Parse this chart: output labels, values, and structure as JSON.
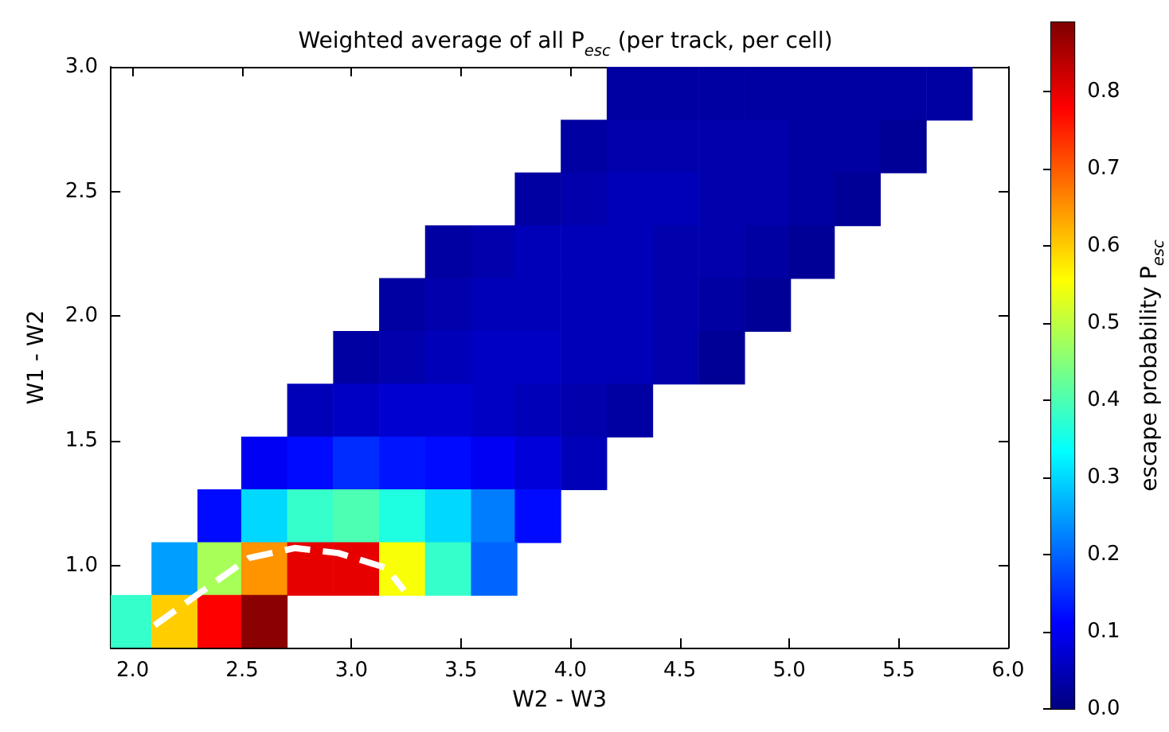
{
  "chart_data": {
    "type": "heatmap",
    "title": "Weighted average of all P$_{esc}$ (per track, per cell)",
    "xlabel": "W2 - W3",
    "ylabel": "W1 - W2",
    "clabel": "escape probability P$_{esc}$",
    "x": [
      1.98,
      2.19,
      2.4,
      2.6,
      2.81,
      3.02,
      3.23,
      3.44,
      3.65,
      3.85,
      4.06,
      4.27,
      4.48,
      4.69,
      4.9,
      5.1,
      5.31,
      5.52,
      5.73
    ],
    "cells": [
      [
        null,
        null,
        null,
        null,
        null,
        null,
        null,
        null,
        null,
        null,
        null,
        0.03,
        0.03,
        0.03,
        0.03,
        0.03,
        0.03,
        0.03,
        0.03
      ],
      [
        null,
        null,
        null,
        null,
        null,
        null,
        null,
        null,
        null,
        null,
        0.03,
        0.04,
        0.04,
        0.04,
        0.04,
        0.03,
        0.03,
        0.02,
        null
      ],
      [
        null,
        null,
        null,
        null,
        null,
        null,
        null,
        null,
        null,
        0.03,
        0.04,
        0.05,
        0.05,
        0.04,
        0.04,
        0.03,
        0.02,
        null,
        null
      ],
      [
        null,
        null,
        null,
        null,
        null,
        null,
        null,
        0.03,
        0.04,
        0.05,
        0.05,
        0.05,
        0.04,
        0.04,
        0.03,
        0.02,
        null,
        null,
        null
      ],
      [
        null,
        null,
        null,
        null,
        null,
        null,
        0.03,
        0.04,
        0.05,
        0.05,
        0.05,
        0.05,
        0.04,
        0.03,
        0.02,
        null,
        null,
        null,
        null
      ],
      [
        null,
        null,
        null,
        null,
        null,
        0.03,
        0.04,
        0.05,
        0.06,
        0.06,
        0.05,
        0.05,
        0.04,
        0.02,
        null,
        null,
        null,
        null,
        null
      ],
      [
        null,
        null,
        null,
        null,
        0.05,
        0.06,
        0.07,
        0.07,
        0.06,
        0.05,
        0.04,
        0.03,
        null,
        null,
        null,
        null,
        null,
        null,
        null
      ],
      [
        null,
        null,
        null,
        0.1,
        0.12,
        0.15,
        0.13,
        0.12,
        0.1,
        0.08,
        0.05,
        null,
        null,
        null,
        null,
        null,
        null,
        null,
        null
      ],
      [
        null,
        null,
        0.12,
        0.3,
        0.38,
        0.4,
        0.36,
        0.3,
        0.22,
        0.12,
        null,
        null,
        null,
        null,
        null,
        null,
        null,
        null,
        null
      ],
      [
        null,
        0.25,
        0.48,
        0.65,
        0.8,
        0.8,
        0.55,
        0.38,
        0.2,
        null,
        null,
        null,
        null,
        null,
        null,
        null,
        null,
        null,
        null
      ],
      [
        0.38,
        0.6,
        0.78,
        0.88,
        null,
        null,
        null,
        null,
        null,
        null,
        null,
        null,
        null,
        null,
        null,
        null,
        null,
        null,
        null
      ]
    ],
    "xlim": [
      1.9,
      6.0
    ],
    "ylim": [
      0.67,
      3.0
    ],
    "xticks": [
      {
        "value": 2,
        "label": "2.0"
      },
      2.5,
      {
        "value": 3,
        "label": "3.0"
      },
      3.5,
      {
        "value": 4,
        "label": "4.0"
      },
      4.5,
      {
        "value": 5,
        "label": "5.0"
      },
      5.5,
      {
        "value": 6,
        "label": "6.0"
      }
    ],
    "yticks": [
      {
        "value": 1,
        "label": "1.0"
      },
      1.5,
      {
        "value": 2,
        "label": "2.0"
      },
      2.5,
      {
        "value": 3,
        "label": "3.0"
      }
    ],
    "clim": [
      0,
      0.89
    ],
    "cticks": [
      {
        "value": 0,
        "label": "0.0"
      },
      0.1,
      0.2,
      0.3,
      0.4,
      0.5,
      0.6,
      0.7,
      0.8
    ],
    "series": [
      {
        "type": "line",
        "color": "#ffffff",
        "line_style": "dashed",
        "marker": "none",
        "x": [
          2.1,
          2.53,
          2.74,
          2.94,
          3.16,
          3.24
        ],
        "values": [
          0.76,
          1.03,
          1.07,
          1.05,
          0.99,
          0.9
        ]
      }
    ]
  }
}
